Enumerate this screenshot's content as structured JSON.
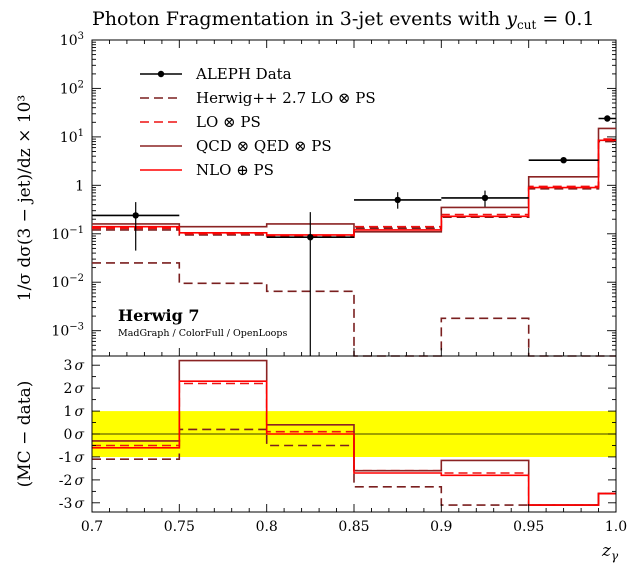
{
  "title": "Photon Fragmentation in 3-jet events with y_cut = 0.1",
  "title_parts": {
    "main": "Photon Fragmentation in 3-jet events with ",
    "var": "y",
    "sub": "cut",
    "tail": " = 0.1"
  },
  "chart_data": {
    "type": "line",
    "x_edges": [
      0.7,
      0.75,
      0.8,
      0.85,
      0.9,
      0.95,
      0.99,
      1.0
    ],
    "xlim": [
      0.7,
      1.0
    ],
    "xlabel": "z_γ",
    "xlabel_parts": {
      "var": "z",
      "sub": "γ"
    },
    "x_ticks": [
      "0.7",
      "0.75",
      "0.8",
      "0.85",
      "0.9",
      "0.95",
      "1.0"
    ],
    "main": {
      "ylabel": "1/σ dσ(3 − jet)/dz × 10³",
      "yscale": "log",
      "ylim": [
        0.0003,
        1000
      ],
      "y_ticks": [
        {
          "v": 0.001,
          "b": "10",
          "e": "−3"
        },
        {
          "v": 0.01,
          "b": "10",
          "e": "−2"
        },
        {
          "v": 0.1,
          "b": "10",
          "e": "−1"
        },
        {
          "v": 1,
          "b": "1",
          "e": ""
        },
        {
          "v": 10,
          "b": "10",
          "e": "1"
        },
        {
          "v": 100,
          "b": "10",
          "e": "2"
        },
        {
          "v": 1000,
          "b": "10",
          "e": "3"
        }
      ],
      "data": {
        "name": "ALEPH Data",
        "x": [
          0.725,
          0.825,
          0.875,
          0.925,
          0.97,
          0.995
        ],
        "xerr": [
          [
            0.7,
            0.75
          ],
          [
            0.8,
            0.85
          ],
          [
            0.85,
            0.9
          ],
          [
            0.9,
            0.95
          ],
          [
            0.95,
            0.99
          ],
          [
            0.99,
            1.0
          ]
        ],
        "y": [
          0.24,
          0.085,
          0.5,
          0.55,
          3.3,
          24
        ],
        "ylo": [
          0.045,
          0.0003,
          0.33,
          0.36,
          3.0,
          21
        ],
        "yhi": [
          0.45,
          0.28,
          0.72,
          0.78,
          3.6,
          27
        ]
      },
      "series": [
        {
          "name": "Herwig++ 2.7 LO ⊗ PS",
          "color": "#7a1f1f",
          "dash": "9,5",
          "values": [
            0.025,
            0.0095,
            0.0065,
            0.00022,
            0.0018,
            0.00022,
            0.00022
          ]
        },
        {
          "name": "Herwig++ 2.7 LO ⊗ PS (γ)",
          "color": "#7a1f1f",
          "dash": "9,5",
          "legend": false,
          "values": [
            0.12,
            0.095,
            0.085,
            0.13,
            0.22,
            0.85,
            8
          ]
        },
        {
          "name": "LO ⊗ PS",
          "color": "#ee1111",
          "dash": "9,5",
          "values": [
            0.13,
            0.1,
            0.09,
            0.14,
            0.25,
            0.95,
            9
          ]
        },
        {
          "name": "QCD ⊗ QED ⊗ PS",
          "color": "#8b2323",
          "dash": "",
          "values": [
            0.16,
            0.14,
            0.16,
            0.11,
            0.35,
            1.5,
            15
          ]
        },
        {
          "name": "NLO ⊕ PS",
          "color": "#ff0000",
          "dash": "",
          "values": [
            0.14,
            0.105,
            0.095,
            0.12,
            0.23,
            0.9,
            8.5
          ]
        }
      ],
      "annotation_title": "Herwig 7",
      "annotation_sub": "MadGraph / ColorFull / OpenLoops"
    },
    "ratio": {
      "ylabel": "(MC − data)",
      "ylim": [
        -3.4,
        3.4
      ],
      "band": [
        -1,
        1
      ],
      "band_color": "#ffff00",
      "y_ticks": [
        {
          "v": 3,
          "t": "3"
        },
        {
          "v": 2,
          "t": "2"
        },
        {
          "v": 1,
          "t": "1"
        },
        {
          "v": 0,
          "t": "0"
        },
        {
          "v": -1,
          "t": "-1"
        },
        {
          "v": -2,
          "t": "-2"
        },
        {
          "v": -3,
          "t": "-3"
        }
      ],
      "sigma": "σ",
      "series": [
        {
          "name": "Herwig++ 2.7 LO ⊗ PS",
          "color": "#7a1f1f",
          "dash": "9,5",
          "values": [
            -1.1,
            0.2,
            -0.5,
            -2.3,
            -3.1,
            -3.1,
            -2.6
          ]
        },
        {
          "name": "LO ⊗ PS",
          "color": "#ee1111",
          "dash": "9,5",
          "values": [
            -0.5,
            2.2,
            0.1,
            -1.6,
            -1.7,
            -3.1,
            -2.6
          ]
        },
        {
          "name": "QCD ⊗ QED ⊗ PS",
          "color": "#8b2323",
          "dash": "",
          "values": [
            -0.3,
            3.2,
            0.4,
            -1.6,
            -1.15,
            -3.1,
            -2.6
          ]
        },
        {
          "name": "NLO ⊕ PS",
          "color": "#ff0000",
          "dash": "",
          "values": [
            -0.6,
            2.3,
            0.0,
            -1.7,
            -1.8,
            -3.1,
            -2.6
          ]
        }
      ]
    }
  }
}
